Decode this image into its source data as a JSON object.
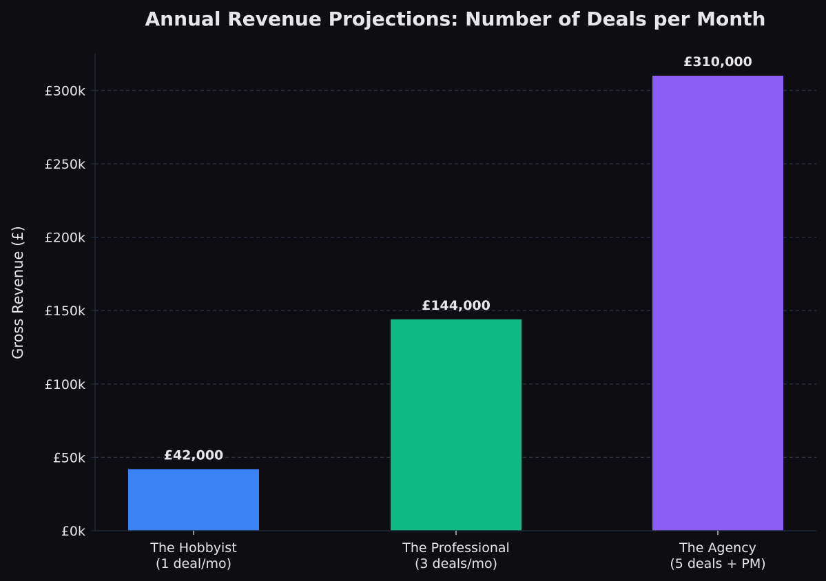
{
  "chart_data": {
    "type": "bar",
    "title": "Annual Revenue Projections: Number of Deals per Month",
    "xlabel": "",
    "ylabel": "Gross Revenue (£)",
    "categories": [
      [
        "The Hobbyist",
        "(1 deal/mo)"
      ],
      [
        "The Professional",
        "(3 deals/mo)"
      ],
      [
        "The Agency",
        "(5 deals + PM)"
      ]
    ],
    "values": [
      42000,
      144000,
      310000
    ],
    "data_labels": [
      "£42,000",
      "£144,000",
      "£310,000"
    ],
    "bar_colors": [
      "#3b82f6",
      "#10b981",
      "#8b5cf6"
    ],
    "ylim": [
      0,
      325000
    ],
    "yticks": [
      0,
      50000,
      100000,
      150000,
      200000,
      250000,
      300000
    ],
    "ytick_labels": [
      "£0k",
      "£50k",
      "£100k",
      "£150k",
      "£200k",
      "£250k",
      "£300k"
    ],
    "grid": true,
    "grid_axis": "y",
    "grid_style": "dashed",
    "colors": {
      "background": "#0e0e12",
      "text": "#e5e7eb",
      "axis": "#1e293b",
      "grid": "#334155"
    }
  }
}
